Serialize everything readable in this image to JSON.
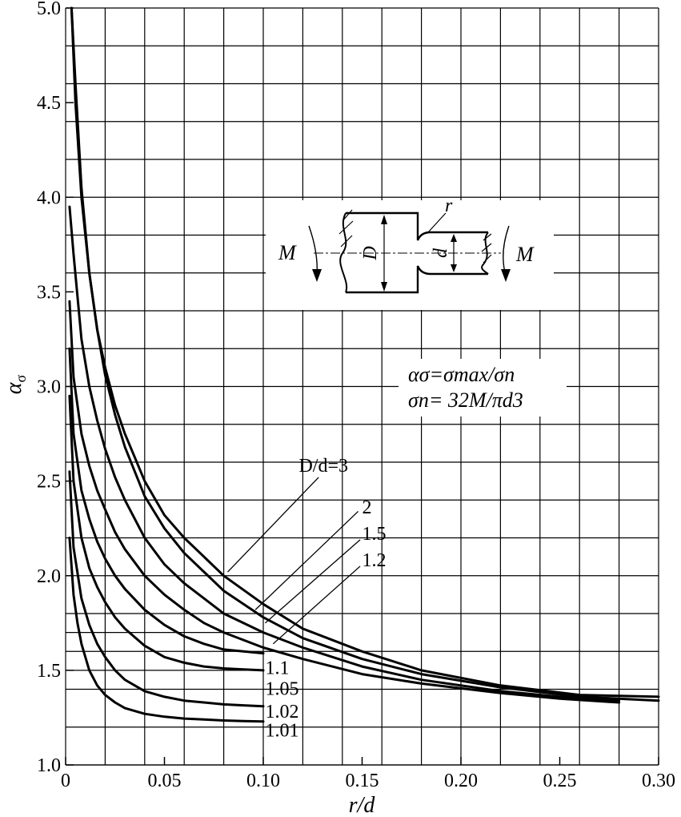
{
  "chart_data": {
    "type": "line",
    "xlabel": "r/d",
    "ylabel": "α",
    "ylabel_sub": "σ",
    "xlim": [
      0,
      0.3
    ],
    "ylim": [
      1.0,
      5.0
    ],
    "x_ticks": [
      "0",
      "0.05",
      "0.10",
      "0.15",
      "0.20",
      "0.25",
      "0.30"
    ],
    "y_ticks": [
      "1.0",
      "1.5",
      "2.0",
      "2.5",
      "3.0",
      "3.5",
      "4.0",
      "4.5",
      "5.0"
    ],
    "x_grid": [
      0.02,
      0.04,
      0.06,
      0.08,
      0.1,
      0.12,
      0.14,
      0.16,
      0.18,
      0.2,
      0.22,
      0.24,
      0.26,
      0.28,
      0.3
    ],
    "y_grid": [
      1.0,
      1.2,
      1.4,
      1.6,
      1.8,
      2.0,
      2.2,
      2.4,
      2.6,
      2.8,
      3.0,
      3.2,
      3.4,
      3.6,
      3.8,
      4.0,
      4.2,
      4.4,
      4.6,
      4.8,
      5.0
    ],
    "extra_y_grid": [
      1.5,
      1.7
    ],
    "grid": true,
    "formula": {
      "line1": "ασ=σmax/σn",
      "line2": "σn= 32M/πd3"
    },
    "diagram_labels": {
      "M_left": "M",
      "M_right": "M",
      "D": "D",
      "d": "d",
      "r": "r"
    },
    "series": [
      {
        "name": "D/d=3",
        "x": [
          0.003,
          0.005,
          0.008,
          0.012,
          0.016,
          0.02,
          0.025,
          0.03,
          0.04,
          0.05,
          0.06,
          0.07,
          0.08,
          0.1,
          0.12,
          0.15,
          0.18,
          0.22,
          0.26,
          0.3
        ],
        "y": [
          5.0,
          4.5,
          4.0,
          3.6,
          3.3,
          3.1,
          2.9,
          2.75,
          2.5,
          2.32,
          2.2,
          2.1,
          2.0,
          1.85,
          1.72,
          1.6,
          1.5,
          1.42,
          1.37,
          1.36
        ]
      },
      {
        "name": "2",
        "x": [
          0.003,
          0.005,
          0.008,
          0.012,
          0.016,
          0.02,
          0.025,
          0.03,
          0.04,
          0.05,
          0.06,
          0.07,
          0.08,
          0.1,
          0.12,
          0.15,
          0.18,
          0.22,
          0.26,
          0.3
        ],
        "y": [
          5.0,
          4.6,
          4.05,
          3.6,
          3.3,
          3.06,
          2.85,
          2.68,
          2.42,
          2.25,
          2.12,
          2.02,
          1.92,
          1.78,
          1.67,
          1.56,
          1.48,
          1.41,
          1.36,
          1.34
        ]
      },
      {
        "name": "1.5",
        "x": [
          0.002,
          0.004,
          0.008,
          0.012,
          0.016,
          0.02,
          0.025,
          0.03,
          0.04,
          0.05,
          0.06,
          0.07,
          0.08,
          0.1,
          0.12,
          0.15,
          0.18,
          0.22,
          0.25,
          0.28
        ],
        "y": [
          3.95,
          3.7,
          3.25,
          3.0,
          2.82,
          2.67,
          2.52,
          2.4,
          2.2,
          2.06,
          1.96,
          1.88,
          1.8,
          1.7,
          1.62,
          1.52,
          1.45,
          1.39,
          1.36,
          1.34
        ]
      },
      {
        "name": "1.2",
        "x": [
          0.002,
          0.004,
          0.008,
          0.012,
          0.016,
          0.02,
          0.025,
          0.03,
          0.04,
          0.05,
          0.06,
          0.07,
          0.08,
          0.1,
          0.12,
          0.15,
          0.18,
          0.22,
          0.25,
          0.28
        ],
        "y": [
          3.45,
          3.05,
          2.75,
          2.58,
          2.45,
          2.35,
          2.23,
          2.14,
          2.0,
          1.9,
          1.82,
          1.75,
          1.7,
          1.62,
          1.56,
          1.48,
          1.43,
          1.38,
          1.35,
          1.33
        ]
      },
      {
        "name": "1.1",
        "x": [
          0.002,
          0.004,
          0.008,
          0.012,
          0.016,
          0.02,
          0.025,
          0.03,
          0.04,
          0.05,
          0.06,
          0.07,
          0.08,
          0.09,
          0.1
        ],
        "y": [
          3.2,
          2.75,
          2.45,
          2.3,
          2.18,
          2.09,
          2.0,
          1.93,
          1.82,
          1.74,
          1.68,
          1.64,
          1.61,
          1.6,
          1.59
        ]
      },
      {
        "name": "1.05",
        "x": [
          0.002,
          0.004,
          0.008,
          0.012,
          0.016,
          0.02,
          0.025,
          0.03,
          0.04,
          0.05,
          0.06,
          0.07,
          0.08,
          0.09,
          0.1
        ],
        "y": [
          2.95,
          2.5,
          2.2,
          2.04,
          1.94,
          1.86,
          1.78,
          1.72,
          1.63,
          1.57,
          1.54,
          1.52,
          1.51,
          1.505,
          1.5
        ]
      },
      {
        "name": "1.02",
        "x": [
          0.002,
          0.004,
          0.008,
          0.012,
          0.016,
          0.02,
          0.025,
          0.03,
          0.04,
          0.05,
          0.06,
          0.07,
          0.08,
          0.09,
          0.1
        ],
        "y": [
          2.55,
          2.15,
          1.88,
          1.74,
          1.64,
          1.57,
          1.5,
          1.45,
          1.39,
          1.36,
          1.34,
          1.33,
          1.32,
          1.315,
          1.31
        ]
      },
      {
        "name": "1.01",
        "x": [
          0.002,
          0.004,
          0.006,
          0.008,
          0.012,
          0.016,
          0.02,
          0.025,
          0.03,
          0.04,
          0.05,
          0.06,
          0.07,
          0.08,
          0.09,
          0.1
        ],
        "y": [
          2.2,
          1.9,
          1.75,
          1.64,
          1.5,
          1.42,
          1.37,
          1.33,
          1.3,
          1.27,
          1.255,
          1.245,
          1.24,
          1.235,
          1.232,
          1.23
        ]
      }
    ]
  }
}
